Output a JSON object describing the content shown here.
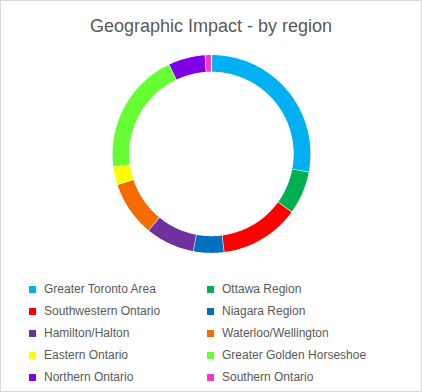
{
  "chart_data": {
    "type": "donut",
    "title": "Geographic Impact - by region",
    "categories": [
      "Greater Toronto Area",
      "Ottawa Region",
      "Southwestern Ontario",
      "Niagara Region",
      "Hamilton/Halton",
      "Waterloo/Wellington",
      "Eastern Ontario",
      "Greater Golden Horseshoe",
      "Northern Ontario",
      "Southern Ontario"
    ],
    "values": [
      28,
      7,
      13,
      5,
      8,
      9,
      3,
      20,
      6,
      1
    ],
    "colors": [
      "#00b0f0",
      "#00b050",
      "#ff0000",
      "#0070c0",
      "#7030a0",
      "#f56b00",
      "#ffff00",
      "#66ff33",
      "#7f00e6",
      "#ff33cc"
    ],
    "legend": "bottom"
  }
}
